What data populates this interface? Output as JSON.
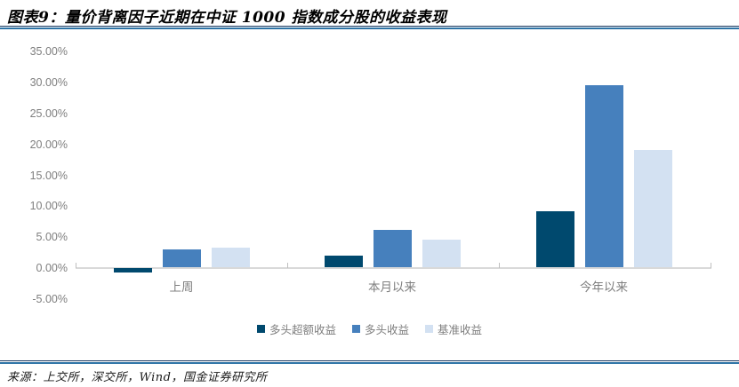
{
  "header": {
    "title": "图表9：量价背离因子近期在中证 1000 指数成分股的收益表现"
  },
  "chart_data": {
    "type": "bar",
    "title": "图表9：量价背离因子近期在中证 1000 指数成分股的收益表现",
    "categories": [
      "上周",
      "本月以来",
      "今年以来"
    ],
    "series": [
      {
        "name": "多头超额收益",
        "color": "#00496E",
        "values": [
          -0.7,
          1.8,
          9.1
        ]
      },
      {
        "name": "多头收益",
        "color": "#4680BD",
        "values": [
          2.9,
          6.0,
          29.5
        ]
      },
      {
        "name": "基准收益",
        "color": "#D3E1F2",
        "values": [
          3.1,
          4.5,
          19.0
        ]
      }
    ],
    "ylabel": "",
    "xlabel": "",
    "ylim": [
      -5,
      35
    ],
    "y_tick_step": 5,
    "y_ticks": [
      "35.00%",
      "30.00%",
      "25.00%",
      "20.00%",
      "15.00%",
      "10.00%",
      "5.00%",
      "0.00%",
      "-5.00%"
    ],
    "grid": false,
    "legend_position": "bottom",
    "colors": {
      "axis_line": "#D9D9D9",
      "axis_tick": "#BFBFBF",
      "tick_label": "#7F7F7F"
    }
  },
  "footer": {
    "source": "来源：上交所，深交所，Wind，国金证券研究所"
  }
}
